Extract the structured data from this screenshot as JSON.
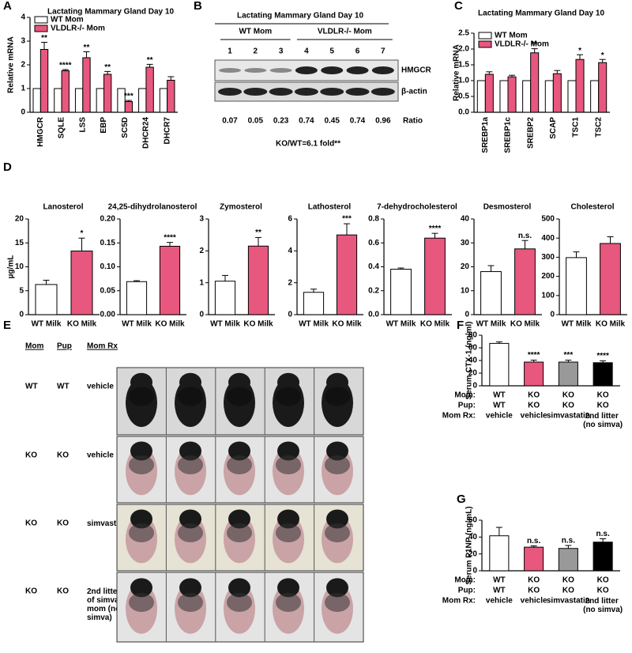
{
  "panels": [
    "A",
    "B",
    "C",
    "D",
    "E",
    "F",
    "G"
  ],
  "chart_data": [
    {
      "type": "bar",
      "title": "Lactating Mammary Gland Day 10",
      "y_label": "Relative mRNA",
      "categories": [
        "HMGCR",
        "SQLE",
        "LSS",
        "EBP",
        "SC5D",
        "DHCR24",
        "DHCR7"
      ],
      "series": [
        {
          "name": "WT Mom",
          "color": "#ffffff",
          "values": [
            1,
            1,
            1,
            1,
            1,
            1,
            1
          ]
        },
        {
          "name": "VLDLR-/- Mom",
          "color": "#e8577e",
          "values": [
            2.65,
            1.75,
            2.3,
            1.6,
            0.45,
            1.9,
            1.35
          ],
          "errors": [
            0.3,
            0.05,
            0.25,
            0.12,
            0.05,
            0.12,
            0.15
          ],
          "annotations": [
            "**",
            "****",
            "**",
            "**",
            "***",
            "**",
            null
          ]
        }
      ],
      "ylim": [
        0,
        4
      ],
      "yticks": [
        0,
        1,
        2,
        3,
        4
      ],
      "legend": "upper left"
    },
    {
      "type": "bar",
      "title": "Lactating Mammary Gland Day 10",
      "y_label": "Relative mRNA",
      "categories": [
        "SREBP1a",
        "SREBP1c",
        "SREBP2",
        "SCAP",
        "TSC1",
        "TSC2"
      ],
      "series": [
        {
          "name": "WT Mom",
          "color": "#ffffff",
          "values": [
            1,
            1,
            1,
            1,
            1,
            1
          ]
        },
        {
          "name": "VLDLR-/- Mom",
          "color": "#e8577e",
          "values": [
            1.2,
            1.12,
            1.88,
            1.22,
            1.67,
            1.57
          ],
          "errors": [
            0.08,
            0.05,
            0.13,
            0.1,
            0.15,
            0.1
          ],
          "annotations": [
            null,
            null,
            "**",
            null,
            "*",
            "*"
          ]
        }
      ],
      "ylim": [
        0,
        2.5
      ],
      "yticks": [
        {
          "value": 0,
          "label": "0.0"
        },
        0.5,
        {
          "value": 1,
          "label": "1.0"
        },
        1.5,
        {
          "value": 2,
          "label": "2.0"
        },
        2.5
      ],
      "legend": "upper left"
    },
    {
      "type": "bar",
      "title": "Lanosterol",
      "y_label": "µg/mL",
      "categories": [
        "WT Milk",
        "KO Milk"
      ],
      "colors": [
        "#ffffff",
        "#e8577e"
      ],
      "values": [
        6.3,
        13.3
      ],
      "errors": [
        0.9,
        2.7
      ],
      "annotations": [
        null,
        "*"
      ],
      "ylim": [
        0,
        20
      ],
      "yticks": [
        0,
        5,
        10,
        15,
        20
      ]
    },
    {
      "type": "bar",
      "title": "24,25-dihydrolanosterol",
      "categories": [
        "WT Milk",
        "KO Milk"
      ],
      "colors": [
        "#ffffff",
        "#e8577e"
      ],
      "values": [
        0.069,
        0.143
      ],
      "errors": [
        0.002,
        0.008
      ],
      "annotations": [
        null,
        "****"
      ],
      "ylim": [
        0,
        0.2
      ],
      "yticks": [
        {
          "value": 0,
          "label": "0.00"
        },
        0.05,
        {
          "value": 0.1,
          "label": "0.10"
        },
        0.15,
        {
          "value": 0.2,
          "label": "0.20"
        }
      ]
    },
    {
      "type": "bar",
      "title": "Zymosterol",
      "categories": [
        "WT Milk",
        "KO Milk"
      ],
      "colors": [
        "#ffffff",
        "#e8577e"
      ],
      "values": [
        1.05,
        2.15
      ],
      "errors": [
        0.18,
        0.27
      ],
      "annotations": [
        null,
        "**"
      ],
      "ylim": [
        0,
        3
      ],
      "yticks": [
        0,
        1,
        2,
        3
      ]
    },
    {
      "type": "bar",
      "title": "Lathosterol",
      "categories": [
        "WT Milk",
        "KO Milk"
      ],
      "colors": [
        "#ffffff",
        "#e8577e"
      ],
      "values": [
        1.4,
        5.0
      ],
      "errors": [
        0.2,
        0.7
      ],
      "annotations": [
        null,
        "***"
      ],
      "ylim": [
        0,
        6
      ],
      "yticks": [
        0,
        2,
        4,
        6
      ]
    },
    {
      "type": "bar",
      "title": "7-dehydrocholesterol",
      "categories": [
        "WT Milk",
        "KO Milk"
      ],
      "colors": [
        "#ffffff",
        "#e8577e"
      ],
      "values": [
        0.38,
        0.64
      ],
      "errors": [
        0.01,
        0.04
      ],
      "annotations": [
        null,
        "****"
      ],
      "ylim": [
        0,
        0.8
      ],
      "yticks": [
        {
          "value": 0,
          "label": "0.0"
        },
        0.2,
        0.4,
        0.6,
        0.8
      ]
    },
    {
      "type": "bar",
      "title": "Desmosterol",
      "categories": [
        "WT Milk",
        "KO Milk"
      ],
      "colors": [
        "#ffffff",
        "#e8577e"
      ],
      "values": [
        18,
        27.5
      ],
      "errors": [
        2.5,
        3.5
      ],
      "annotations": [
        null,
        "n.s."
      ],
      "ylim": [
        0,
        40
      ],
      "yticks": [
        0,
        10,
        20,
        30,
        40
      ]
    },
    {
      "type": "bar",
      "title": "Cholesterol",
      "categories": [
        "WT Milk",
        "KO Milk"
      ],
      "colors": [
        "#ffffff",
        "#e8577e"
      ],
      "values": [
        298,
        372
      ],
      "errors": [
        30,
        35
      ],
      "annotations": [
        null,
        null
      ],
      "ylim": [
        0,
        500
      ],
      "yticks": [
        0,
        100,
        200,
        300,
        400,
        500
      ]
    },
    {
      "type": "bar",
      "y_label": "Serum CTX-1 (ng/ml)",
      "colors": [
        "#ffffff",
        "#e8577e",
        "#999999",
        "#000000"
      ],
      "values": [
        67,
        37.5,
        37.5,
        36.5
      ],
      "errors": [
        2.5,
        3,
        3,
        3
      ],
      "annotations": [
        null,
        "****",
        "***",
        "****"
      ],
      "ylim": [
        0,
        80
      ],
      "yticks": [
        0,
        20,
        40,
        60,
        80
      ],
      "table": {
        "row_labels": [
          "Mom:",
          "Pup:",
          "Mom Rx:"
        ],
        "rows": [
          [
            "WT",
            "KO",
            "KO",
            "KO"
          ],
          [
            "WT",
            "KO",
            "KO",
            "KO"
          ],
          [
            "vehicle",
            "vehicle",
            "simvastatin",
            "2nd litter (no simva)"
          ]
        ]
      }
    },
    {
      "type": "bar",
      "y_label": "Serum P1NP (ng/mL)",
      "colors": [
        "#ffffff",
        "#e8577e",
        "#999999",
        "#000000"
      ],
      "values": [
        41.5,
        28,
        26.5,
        34
      ],
      "errors": [
        10,
        1.5,
        3.5,
        4
      ],
      "annotations": [
        null,
        "n.s.",
        "n.s.",
        "n.s."
      ],
      "ylim": [
        0,
        60
      ],
      "yticks": [
        0,
        20,
        40,
        60
      ],
      "table": {
        "row_labels": [
          "Mom:",
          "Pup:",
          "Mom Rx:"
        ],
        "rows": [
          [
            "WT",
            "KO",
            "KO",
            "KO"
          ],
          [
            "WT",
            "KO",
            "KO",
            "KO"
          ],
          [
            "vehicle",
            "vehicle",
            "simvastatin",
            "2nd litter (no simva)"
          ]
        ]
      }
    }
  ],
  "blot": {
    "title": "Lactating Mammary Gland Day 10",
    "groups": [
      "WT Mom",
      "VLDLR-/- Mom"
    ],
    "lanes": [
      "1",
      "2",
      "3",
      "4",
      "5",
      "6",
      "7"
    ],
    "bands": [
      "HMGCR",
      "β-actin"
    ],
    "ratios": [
      0.07,
      0.05,
      0.23,
      0.74,
      0.45,
      0.74,
      0.96
    ],
    "ratio_label": "Ratio",
    "footnote": "KO/WT=6.1 fold**"
  },
  "photos": {
    "header": [
      "Mom",
      "Pup",
      "Mom Rx"
    ],
    "rows": [
      [
        "WT",
        "WT",
        "vehicle"
      ],
      [
        "KO",
        "KO",
        "vehicle"
      ],
      [
        "KO",
        "KO",
        "simvastatin"
      ],
      [
        "KO",
        "KO",
        "2nd litter of simva mom (no simva)"
      ]
    ]
  }
}
